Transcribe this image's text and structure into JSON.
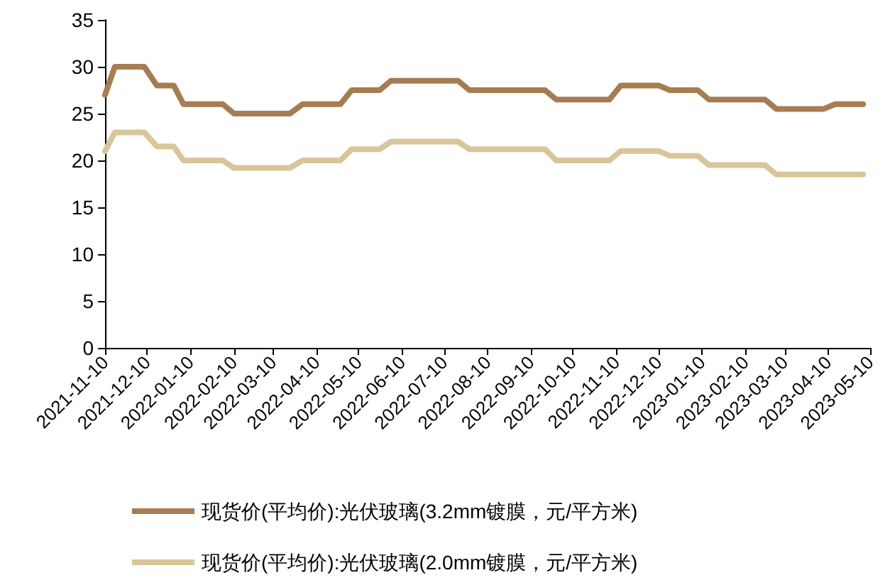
{
  "chart_data": {
    "type": "line",
    "marker": "none",
    "line_style": "solid",
    "grid": false,
    "legend": "bottom",
    "xlim": [
      "2021-11-10",
      "2023-05-10"
    ],
    "xticks": [
      "2021-11-10",
      "2021-12-10",
      "2022-01-10",
      "2022-02-10",
      "2022-03-10",
      "2022-04-10",
      "2022-05-10",
      "2022-06-10",
      "2022-07-10",
      "2022-08-10",
      "2022-09-10",
      "2022-10-10",
      "2022-11-10",
      "2022-12-10",
      "2023-01-10",
      "2023-02-10",
      "2023-03-10",
      "2023-04-10",
      "2023-05-10"
    ],
    "ylim": [
      0,
      35
    ],
    "yticks": [
      0,
      5,
      10,
      15,
      20,
      25,
      30,
      35
    ],
    "series": [
      {
        "name": "现货价(平均价):光伏玻璃(3.2mm镀膜，元/平方米)",
        "color": "#a67c52",
        "x": [
          "2021-11-10",
          "2021-11-17",
          "2021-12-08",
          "2021-12-17",
          "2021-12-29",
          "2022-01-05",
          "2022-02-02",
          "2022-02-10",
          "2022-03-22",
          "2022-03-31",
          "2022-04-27",
          "2022-05-05",
          "2022-05-25",
          "2022-06-02",
          "2022-07-20",
          "2022-07-28",
          "2022-09-20",
          "2022-09-28",
          "2022-11-05",
          "2022-11-13",
          "2022-12-10",
          "2022-12-18",
          "2023-01-07",
          "2023-01-15",
          "2023-02-24",
          "2023-03-04",
          "2023-04-07",
          "2023-04-15",
          "2023-05-05"
        ],
        "values": [
          27,
          30,
          30,
          28,
          28,
          26,
          26,
          25,
          25,
          26,
          26,
          27.5,
          27.5,
          28.5,
          28.5,
          27.5,
          27.5,
          26.5,
          26.5,
          28,
          28,
          27.5,
          27.5,
          26.5,
          26.5,
          25.5,
          25.5,
          26,
          26
        ]
      },
      {
        "name": "现货价(平均价):光伏玻璃(2.0mm镀膜，元/平方米)",
        "color": "#d9c59a",
        "x": [
          "2021-11-10",
          "2021-11-17",
          "2021-12-08",
          "2021-12-17",
          "2021-12-29",
          "2022-01-05",
          "2022-02-02",
          "2022-02-10",
          "2022-03-22",
          "2022-03-31",
          "2022-04-27",
          "2022-05-05",
          "2022-05-25",
          "2022-06-02",
          "2022-07-20",
          "2022-07-28",
          "2022-09-20",
          "2022-09-28",
          "2022-11-05",
          "2022-11-13",
          "2022-12-10",
          "2022-12-18",
          "2023-01-07",
          "2023-01-15",
          "2023-02-24",
          "2023-03-04",
          "2023-05-05"
        ],
        "values": [
          21,
          23,
          23,
          21.5,
          21.5,
          20,
          20,
          19.2,
          19.2,
          20,
          20,
          21.2,
          21.2,
          22,
          22,
          21.2,
          21.2,
          20,
          20,
          21,
          21,
          20.5,
          20.5,
          19.5,
          19.5,
          18.5,
          18.5
        ]
      }
    ]
  }
}
